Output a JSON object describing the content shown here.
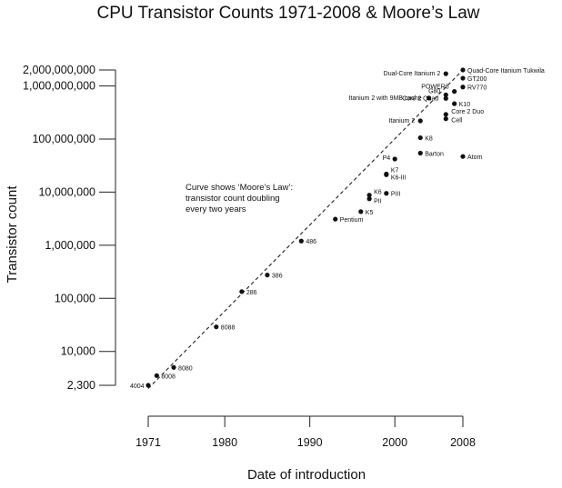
{
  "chart_data": {
    "type": "scatter",
    "title": "CPU Transistor Counts 1971-2008 & Moore’s Law",
    "xlabel": "Date of introduction",
    "ylabel": "Transistor count",
    "x_scale": "linear",
    "y_scale": "log",
    "xlim": [
      1971,
      2008
    ],
    "ylim": [
      2300,
      2000000000
    ],
    "x_ticks": [
      {
        "value": 1971,
        "label": "1971"
      },
      {
        "value": 1980,
        "label": "1980"
      },
      {
        "value": 1990,
        "label": "1990"
      },
      {
        "value": 2000,
        "label": "2000"
      },
      {
        "value": 2008,
        "label": "2008"
      }
    ],
    "y_ticks": [
      {
        "value": 2300,
        "label": "2,300"
      },
      {
        "value": 10000,
        "label": "10,000"
      },
      {
        "value": 100000,
        "label": "100,000"
      },
      {
        "value": 1000000,
        "label": "1,000,000"
      },
      {
        "value": 10000000,
        "label": "10,000,000"
      },
      {
        "value": 100000000,
        "label": "100,000,000"
      },
      {
        "value": 1000000000,
        "label": "1,000,000,000"
      },
      {
        "value": 2000000000,
        "label": "2,000,000,000"
      }
    ],
    "grid": false,
    "annotation": {
      "lines": [
        "Curve shows ‘Moore’s Law’:",
        "transistor count doubling",
        "every two years"
      ]
    },
    "trend_line": {
      "style": "dashed",
      "points": [
        [
          1971,
          2000
        ],
        [
          2008,
          2000000000
        ]
      ]
    },
    "points": [
      {
        "label": "4004",
        "x": 1971,
        "y": 2300
      },
      {
        "label": "8008",
        "x": 1972,
        "y": 3500
      },
      {
        "label": "8080",
        "x": 1974,
        "y": 5000
      },
      {
        "label": "8088",
        "x": 1979,
        "y": 29000
      },
      {
        "label": "286",
        "x": 1982,
        "y": 134000
      },
      {
        "label": "386",
        "x": 1985,
        "y": 275000
      },
      {
        "label": "486",
        "x": 1989,
        "y": 1200000
      },
      {
        "label": "Pentium",
        "x": 1993,
        "y": 3100000
      },
      {
        "label": "K5",
        "x": 1996,
        "y": 4300000
      },
      {
        "label": "K6",
        "x": 1997,
        "y": 8800000
      },
      {
        "label": "PII",
        "x": 1997,
        "y": 7500000
      },
      {
        "label": "PIII",
        "x": 1999,
        "y": 9500000
      },
      {
        "label": "K7",
        "x": 1999,
        "y": 22000000
      },
      {
        "label": "K6-III",
        "x": 1999,
        "y": 21300000
      },
      {
        "label": "P4",
        "x": 2000,
        "y": 42000000
      },
      {
        "label": "Barton",
        "x": 2003,
        "y": 54300000
      },
      {
        "label": "K8",
        "x": 2003,
        "y": 105900000
      },
      {
        "label": "Itanium 2",
        "x": 2003,
        "y": 220000000
      },
      {
        "label": "Cell",
        "x": 2006,
        "y": 241000000
      },
      {
        "label": "Core 2 Duo",
        "x": 2006,
        "y": 291000000
      },
      {
        "label": "Core 2 Quad",
        "x": 2006,
        "y": 582000000
      },
      {
        "label": "Itanium 2 with 9MB cache",
        "x": 2004,
        "y": 592000000
      },
      {
        "label": "G80",
        "x": 2006,
        "y": 681000000
      },
      {
        "label": "K10",
        "x": 2007,
        "y": 463000000
      },
      {
        "label": "RV770",
        "x": 2008,
        "y": 956000000
      },
      {
        "label": "POWER6",
        "x": 2007,
        "y": 789000000
      },
      {
        "label": "GT200",
        "x": 2008,
        "y": 1400000000
      },
      {
        "label": "Dual-Core Itanium 2",
        "x": 2006,
        "y": 1700000000
      },
      {
        "label": "Quad-Core Itanium Tukwila",
        "x": 2008,
        "y": 2000000000
      },
      {
        "label": "Atom",
        "x": 2008,
        "y": 47000000
      }
    ]
  }
}
